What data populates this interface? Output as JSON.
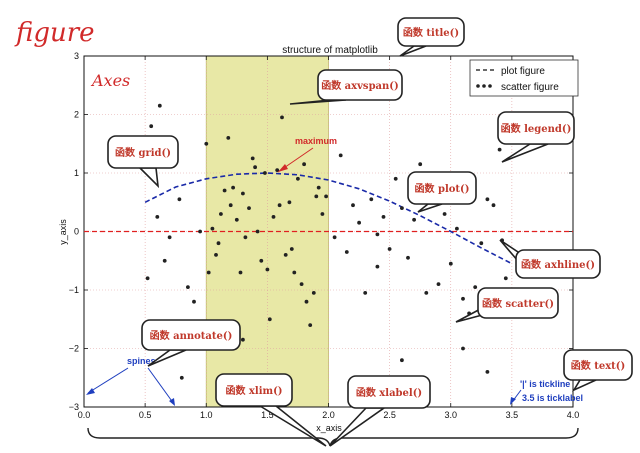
{
  "figure_label": "figure",
  "axes_label": "Axes",
  "colors": {
    "annotation_red": "#d12a2a",
    "span_fill": "#e8e8a6",
    "plot_line": "#1a2aa8",
    "hline": "#e02020",
    "scatter": "#222222",
    "spine_note": "#1f3fbf"
  },
  "chart_data": {
    "type": "scatter",
    "title": "structure of matplotlib",
    "xlabel": "x_axis",
    "ylabel": "y_axis",
    "xlim": [
      0.0,
      4.0
    ],
    "ylim": [
      -3,
      3
    ],
    "x_ticks": [
      "0.0",
      "0.5",
      "1.0",
      "1.5",
      "2.0",
      "2.5",
      "3.0",
      "3.5",
      "4.0"
    ],
    "y_ticks": [
      "3",
      "2",
      "1",
      "0",
      "−1",
      "−2",
      "−3"
    ],
    "grid": true,
    "legend_position": "top-right",
    "axvspan": [
      1.0,
      2.0
    ],
    "axhline": 0,
    "series": [
      {
        "name": "plot figure",
        "type": "line",
        "style": "dashed",
        "x": [
          0.5,
          0.75,
          1.0,
          1.25,
          1.5,
          1.75,
          2.0,
          2.25,
          2.5,
          2.75,
          3.0,
          3.25,
          3.5
        ],
        "y": [
          0.5,
          0.76,
          0.9,
          0.98,
          1.0,
          0.97,
          0.88,
          0.73,
          0.52,
          0.27,
          0.0,
          -0.28,
          -0.55
        ]
      },
      {
        "name": "scatter figure",
        "type": "scatter",
        "x": [
          0.52,
          0.55,
          0.62,
          0.66,
          0.72,
          0.78,
          0.85,
          0.9,
          0.95,
          1.0,
          1.02,
          1.05,
          1.08,
          1.1,
          1.12,
          1.15,
          1.18,
          1.2,
          1.22,
          1.25,
          1.28,
          1.3,
          1.32,
          1.35,
          1.38,
          1.4,
          1.42,
          1.45,
          1.48,
          1.5,
          1.52,
          1.55,
          1.58,
          1.6,
          1.62,
          1.65,
          1.68,
          1.7,
          1.72,
          1.75,
          1.78,
          1.8,
          1.82,
          1.85,
          1.88,
          1.9,
          1.92,
          1.95,
          1.98,
          2.05,
          2.1,
          2.15,
          2.2,
          2.25,
          2.3,
          2.35,
          2.4,
          2.45,
          2.5,
          2.55,
          2.6,
          2.65,
          2.7,
          2.75,
          2.8,
          2.85,
          2.9,
          2.95,
          3.0,
          3.05,
          3.1,
          3.15,
          3.2,
          3.25,
          3.3,
          3.35,
          3.4,
          3.45,
          0.6,
          0.7,
          0.8,
          1.3,
          2.4,
          2.6,
          3.1,
          3.3,
          3.42
        ],
        "y": [
          -0.8,
          1.8,
          2.15,
          -0.5,
          1.15,
          0.55,
          -0.95,
          -1.2,
          0.0,
          1.5,
          -0.7,
          0.05,
          -0.4,
          -0.2,
          0.3,
          0.7,
          1.6,
          0.45,
          0.75,
          0.2,
          -0.7,
          0.65,
          -0.1,
          0.4,
          1.25,
          1.1,
          0.0,
          -0.5,
          1.0,
          -0.65,
          -1.5,
          0.25,
          1.05,
          0.45,
          1.95,
          -0.4,
          0.5,
          -0.3,
          -0.7,
          0.9,
          -0.9,
          1.15,
          -1.2,
          -1.6,
          -1.05,
          0.6,
          0.75,
          0.3,
          0.6,
          -0.1,
          1.3,
          -0.35,
          0.45,
          0.15,
          -1.05,
          0.55,
          -0.6,
          0.25,
          -0.3,
          0.9,
          0.4,
          -0.45,
          0.2,
          1.15,
          -1.05,
          0.85,
          -0.9,
          0.3,
          -0.55,
          0.05,
          -1.15,
          -1.4,
          -0.95,
          -0.2,
          0.55,
          0.45,
          1.4,
          -0.8,
          0.25,
          -0.1,
          -2.5,
          -1.85,
          -0.05,
          -2.2,
          -2.0,
          -2.4,
          -0.15
        ]
      }
    ]
  },
  "callouts": [
    {
      "name": "title-callout",
      "label": "函数 title()"
    },
    {
      "name": "axvspan-callout",
      "label": "函数 axvspan()"
    },
    {
      "name": "legend-callout",
      "label": "函数 legend()"
    },
    {
      "name": "grid-callout",
      "label": "函数 grid()"
    },
    {
      "name": "plot-callout",
      "label": "函数 plot()"
    },
    {
      "name": "axhline-callout",
      "label": "函数 axhline()"
    },
    {
      "name": "scatter-callout",
      "label": "函数 scatter()"
    },
    {
      "name": "annotate-callout",
      "label": "函数 annotate()"
    },
    {
      "name": "text-callout",
      "label": "函数 text()"
    },
    {
      "name": "xlim-callout",
      "label": "函数 xlim()"
    },
    {
      "name": "xlabel-callout",
      "label": "函数 xlabel()"
    }
  ],
  "notes": {
    "maximum": "maximum",
    "spines": "spines",
    "tickline": "'|' is tickline",
    "ticklabel": "3.5 is ticklabel"
  }
}
